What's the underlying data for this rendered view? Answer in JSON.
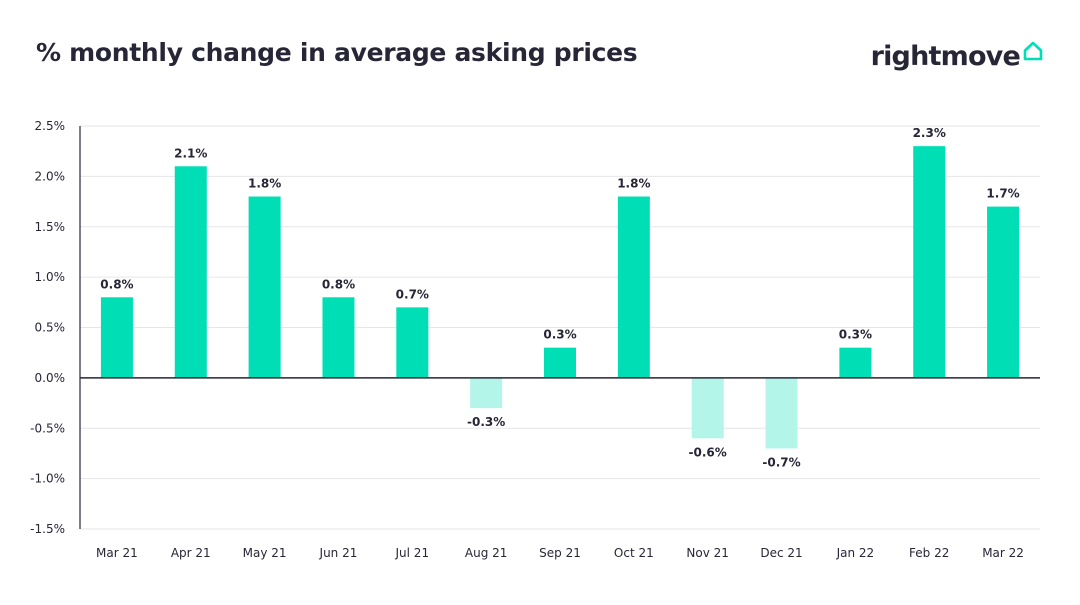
{
  "chart_data": {
    "type": "bar",
    "title": "% monthly change in average asking prices",
    "xlabel": "",
    "ylabel": "",
    "categories": [
      "Mar 21",
      "Apr 21",
      "May 21",
      "Jun 21",
      "Jul 21",
      "Aug 21",
      "Sep 21",
      "Oct 21",
      "Nov 21",
      "Dec 21",
      "Jan 22",
      "Feb 22",
      "Mar 22"
    ],
    "values": [
      0.8,
      2.1,
      1.8,
      0.8,
      0.7,
      -0.3,
      0.3,
      1.8,
      -0.6,
      -0.7,
      0.3,
      2.3,
      1.7
    ],
    "data_labels": [
      "0.8%",
      "2.1%",
      "1.8%",
      "0.8%",
      "0.7%",
      "-0.3%",
      "0.3%",
      "1.8%",
      "-0.6%",
      "-0.7%",
      "0.3%",
      "2.3%",
      "1.7%"
    ],
    "ylim": [
      -1.5,
      2.5
    ],
    "y_ticks": [
      2.5,
      2.0,
      1.5,
      1.0,
      0.5,
      0.0,
      -0.5,
      -1.0,
      -1.5
    ],
    "y_tick_labels": [
      "2.5%",
      "2.0%",
      "1.5%",
      "1.0%",
      "0.5%",
      "0.0%",
      "-0.5%",
      "-1.0%",
      "-1.5%"
    ],
    "grid": true,
    "legend": "none",
    "colors": {
      "positive": "#00deb6",
      "negative": "#b3f5e9",
      "axis": "#262637",
      "grid": "#e6e6ea"
    }
  },
  "brand": {
    "name": "rightmove",
    "accent": "#00deb6",
    "icon": "house-icon"
  }
}
